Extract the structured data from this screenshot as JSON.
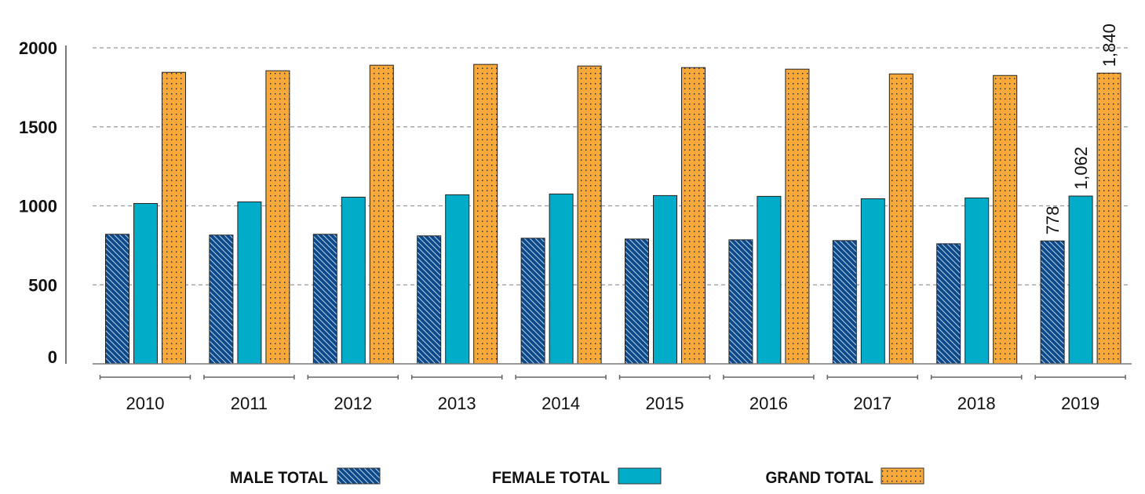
{
  "chart_data": {
    "type": "bar",
    "title": "",
    "xlabel": "",
    "ylabel": "",
    "ylim": [
      0,
      2000
    ],
    "yticks": [
      "0",
      "500",
      "1000",
      "1500",
      "2000"
    ],
    "grid": "horizontal dashed",
    "legend_position": "bottom",
    "categories": [
      "2010",
      "2011",
      "2012",
      "2013",
      "2014",
      "2015",
      "2016",
      "2017",
      "2018",
      "2019"
    ],
    "series": [
      {
        "name": "MALE TOTAL",
        "color": "#0d4a8c",
        "pattern": "diagonal-hatch",
        "values": [
          820,
          815,
          820,
          810,
          795,
          790,
          785,
          780,
          760,
          778
        ]
      },
      {
        "name": "FEMALE TOTAL",
        "color": "#00acc8",
        "pattern": "solid",
        "values": [
          1015,
          1025,
          1055,
          1070,
          1075,
          1065,
          1060,
          1045,
          1050,
          1062
        ]
      },
      {
        "name": "GRAND TOTAL",
        "color": "#f9a93a",
        "pattern": "dots",
        "values": [
          1845,
          1855,
          1890,
          1895,
          1885,
          1875,
          1865,
          1835,
          1825,
          1840
        ]
      }
    ],
    "data_labels": [
      {
        "category": "2019",
        "series": "MALE TOTAL",
        "text": "778"
      },
      {
        "category": "2019",
        "series": "FEMALE TOTAL",
        "text": "1,062"
      },
      {
        "category": "2019",
        "series": "GRAND TOTAL",
        "text": "1,840"
      }
    ]
  }
}
